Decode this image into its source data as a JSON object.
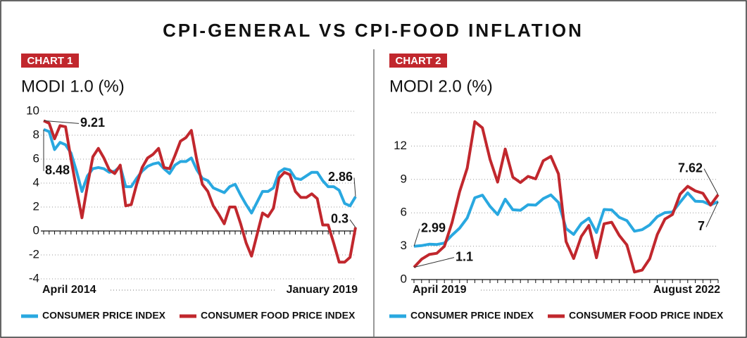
{
  "title": "CPI-GENERAL VS CPI-FOOD INFLATION",
  "chart_data": [
    {
      "type": "line",
      "label": "CHART 1",
      "title": "MODI 1.0 (%)",
      "categories": [
        "April 2014",
        null,
        null,
        null,
        null,
        null,
        null,
        null,
        null,
        null,
        null,
        null,
        null,
        null,
        null,
        null,
        null,
        null,
        null,
        null,
        null,
        null,
        null,
        null,
        null,
        null,
        null,
        null,
        null,
        null,
        null,
        null,
        null,
        null,
        null,
        null,
        null,
        null,
        null,
        null,
        null,
        null,
        null,
        null,
        null,
        null,
        null,
        null,
        null,
        null,
        null,
        null,
        null,
        null,
        null,
        null,
        null,
        "January 2019"
      ],
      "series": [
        {
          "name": "CONSUMER PRICE INDEX",
          "color": "#29a8e0",
          "values": [
            8.48,
            8.3,
            6.8,
            7.4,
            7.2,
            6.5,
            5.0,
            3.3,
            4.6,
            5.2,
            5.3,
            5.2,
            4.9,
            5.0,
            5.4,
            3.7,
            3.7,
            4.4,
            5.0,
            5.4,
            5.6,
            5.7,
            5.2,
            4.8,
            5.5,
            5.8,
            5.8,
            6.1,
            5.1,
            4.4,
            4.2,
            3.6,
            3.4,
            3.2,
            3.7,
            3.9,
            3.0,
            2.2,
            1.5,
            2.4,
            3.3,
            3.3,
            3.6,
            4.9,
            5.2,
            5.1,
            4.4,
            4.3,
            4.6,
            4.9,
            4.9,
            4.2,
            3.7,
            3.7,
            3.4,
            2.3,
            2.1,
            2.86
          ]
        },
        {
          "name": "CONSUMER FOOD PRICE INDEX",
          "color": "#c1272d",
          "values": [
            9.21,
            9.0,
            7.7,
            8.8,
            8.7,
            6.0,
            3.5,
            1.1,
            3.8,
            6.2,
            6.9,
            6.1,
            5.1,
            4.8,
            5.5,
            2.1,
            2.2,
            3.9,
            5.3,
            6.1,
            6.4,
            6.9,
            5.3,
            5.2,
            6.3,
            7.5,
            7.8,
            8.4,
            5.9,
            3.9,
            3.3,
            2.1,
            1.4,
            0.6,
            2.0,
            2.0,
            0.6,
            -1.0,
            -2.1,
            -0.3,
            1.5,
            1.2,
            1.9,
            4.4,
            4.9,
            4.7,
            3.3,
            2.8,
            2.8,
            3.1,
            2.7,
            0.5,
            0.5,
            -1.0,
            -2.6,
            -2.6,
            -2.2,
            0.3
          ]
        }
      ],
      "ylim": [
        -4,
        10
      ],
      "yticks": [
        -4,
        -2,
        0,
        2,
        4,
        6,
        8,
        10
      ],
      "grid": true
    },
    {
      "type": "line",
      "label": "CHART 2",
      "title": "MODI 2.0 (%)",
      "categories": [
        "April 2019",
        null,
        null,
        null,
        null,
        null,
        null,
        null,
        null,
        null,
        null,
        null,
        null,
        null,
        null,
        null,
        null,
        null,
        null,
        null,
        null,
        null,
        null,
        null,
        null,
        null,
        null,
        null,
        null,
        null,
        null,
        null,
        null,
        null,
        null,
        null,
        null,
        null,
        null,
        null,
        "August 2022"
      ],
      "series": [
        {
          "name": "CONSUMER PRICE INDEX",
          "color": "#29a8e0",
          "values": [
            2.99,
            3.05,
            3.18,
            3.15,
            3.28,
            3.99,
            4.62,
            5.54,
            7.35,
            7.59,
            6.58,
            5.84,
            7.22,
            6.27,
            6.23,
            6.73,
            6.69,
            7.27,
            7.61,
            6.93,
            4.59,
            4.06,
            5.03,
            5.52,
            4.23,
            6.3,
            6.26,
            5.59,
            5.3,
            4.35,
            4.48,
            4.91,
            5.66,
            6.01,
            6.07,
            6.95,
            7.79,
            7.04,
            7.01,
            6.71,
            7
          ]
        },
        {
          "name": "CONSUMER FOOD PRICE INDEX",
          "color": "#c1272d",
          "values": [
            1.1,
            1.83,
            2.25,
            2.36,
            2.99,
            5.11,
            7.89,
            10.01,
            14.19,
            13.63,
            10.81,
            8.76,
            11.73,
            9.2,
            8.72,
            9.27,
            9.05,
            10.68,
            11.07,
            9.5,
            3.41,
            1.89,
            3.87,
            4.87,
            1.96,
            5.01,
            5.15,
            3.96,
            3.11,
            0.68,
            0.85,
            1.87,
            4.05,
            5.43,
            5.85,
            7.68,
            8.38,
            7.97,
            7.75,
            6.69,
            7.62
          ]
        }
      ],
      "ylim": [
        0,
        15
      ],
      "yticks": [
        0,
        3,
        6,
        9,
        12
      ],
      "grid": true
    }
  ]
}
